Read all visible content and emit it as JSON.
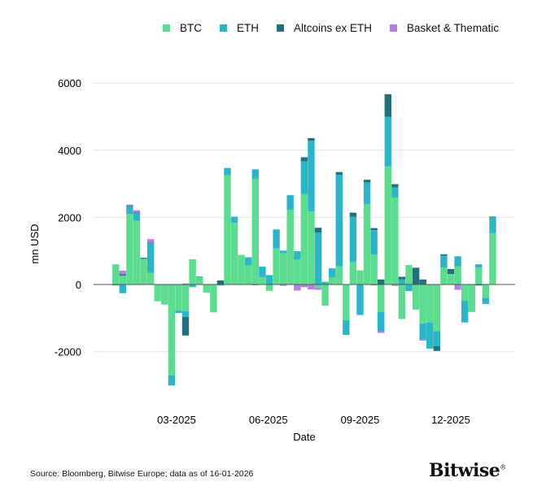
{
  "chart_data": {
    "type": "bar",
    "stacked": true,
    "xlabel": "Date",
    "ylabel": "mn USD",
    "ylim": [
      -3200,
      6200
    ],
    "yticks": [
      -2000,
      0,
      2000,
      4000,
      6000
    ],
    "ytick_labels": [
      "-2000",
      "0",
      "2000",
      "4000",
      "6000"
    ],
    "xticks": [
      {
        "date": "2025-03-01",
        "label": "03-2025"
      },
      {
        "date": "2025-06-01",
        "label": "06-2025"
      },
      {
        "date": "2025-09-01",
        "label": "09-2025"
      },
      {
        "date": "2025-12-01",
        "label": "12-2025"
      }
    ],
    "grid": "horizontal",
    "legend_position": "top",
    "x_start": "2024-12-30",
    "x_interval_days": 7,
    "series": [
      {
        "name": "BTC",
        "color": "#5cdc8e",
        "values": [
          600,
          260,
          2100,
          1900,
          750,
          350,
          -500,
          -600,
          -2710,
          -770,
          -790,
          750,
          210,
          -240,
          -830,
          0,
          3250,
          1840,
          880,
          570,
          3150,
          220,
          -190,
          1070,
          930,
          2220,
          750,
          2700,
          2180,
          -100,
          -630,
          210,
          540,
          -1060,
          670,
          420,
          2390,
          890,
          -820,
          3520,
          2590,
          -1030,
          580,
          -750,
          -1160,
          -1130,
          -1390,
          500,
          310,
          540,
          -480,
          -820,
          500,
          -400,
          1530
        ]
      },
      {
        "name": "ETH",
        "color": "#2bb5c6",
        "values": [
          -30,
          -260,
          230,
          230,
          30,
          880,
          0,
          0,
          -300,
          -80,
          -180,
          -80,
          30,
          0,
          0,
          -30,
          220,
          180,
          0,
          240,
          280,
          310,
          280,
          570,
          80,
          440,
          240,
          970,
          2100,
          1550,
          80,
          270,
          2730,
          -440,
          1350,
          -910,
          650,
          730,
          -580,
          1480,
          300,
          150,
          -200,
          0,
          -480,
          -780,
          -450,
          360,
          0,
          300,
          -650,
          0,
          100,
          -180,
          500
        ]
      },
      {
        "name": "Altcoins ex ETH",
        "color": "#22707d",
        "values": [
          0,
          50,
          20,
          20,
          20,
          20,
          0,
          0,
          0,
          0,
          -550,
          0,
          0,
          0,
          0,
          120,
          0,
          0,
          0,
          0,
          -20,
          0,
          0,
          0,
          0,
          0,
          0,
          120,
          80,
          140,
          0,
          0,
          80,
          0,
          120,
          0,
          80,
          60,
          150,
          670,
          100,
          80,
          0,
          500,
          150,
          0,
          -140,
          40,
          150,
          0,
          0,
          0,
          -30,
          0,
          0
        ]
      },
      {
        "name": "Basket & Thematic",
        "color": "#b47ee3",
        "values": [
          0,
          100,
          30,
          60,
          0,
          100,
          0,
          0,
          0,
          0,
          30,
          0,
          0,
          0,
          0,
          0,
          0,
          0,
          0,
          0,
          0,
          0,
          0,
          0,
          -40,
          0,
          -180,
          -80,
          -150,
          -60,
          0,
          0,
          0,
          0,
          0,
          0,
          0,
          -30,
          -40,
          0,
          -40,
          0,
          0,
          0,
          -30,
          0,
          0,
          0,
          0,
          -160,
          0,
          0,
          0,
          0,
          0
        ]
      }
    ]
  },
  "footer": {
    "source": "Source: Bloomberg, Bitwise Europe; data as of  16-01-2026",
    "logo": "Bitwise"
  }
}
